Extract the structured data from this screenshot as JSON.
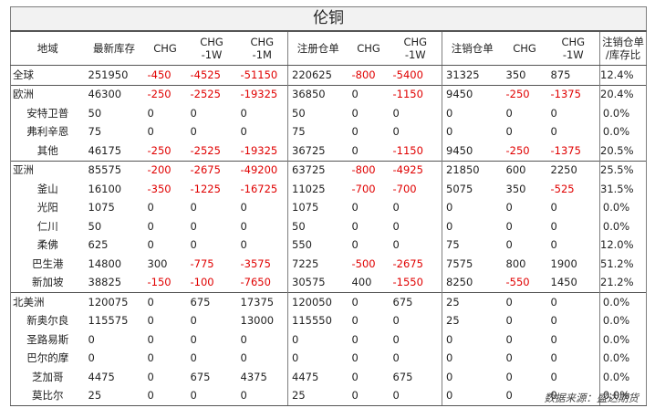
{
  "title": "伦铜",
  "headers": [
    "地域",
    "最新库存",
    "CHG",
    "CHG\n-1W",
    "CHG\n-1M",
    "注册仓单",
    "CHG",
    "CHG\n-1W",
    "注销仓单",
    "CHG",
    "CHG\n-1W",
    "注销仓单\n/库存比"
  ],
  "rows": [
    {
      "region": "全球",
      "sub": false,
      "group_start": true,
      "cells": [
        "251950",
        "-450",
        "-4525",
        "-51150",
        "220625",
        "-800",
        "-5400",
        "31325",
        "350",
        "875",
        "12.4%"
      ]
    },
    {
      "region": "欧洲",
      "sub": false,
      "group_start": true,
      "cells": [
        "46300",
        "-250",
        "-2525",
        "-19325",
        "36850",
        "0",
        "-1150",
        "9450",
        "-250",
        "-1375",
        "20.4%"
      ]
    },
    {
      "region": "安特卫普",
      "sub": true,
      "group_start": false,
      "cells": [
        "50",
        "0",
        "0",
        "0",
        "50",
        "0",
        "0",
        "0",
        "0",
        "0",
        "0.0%"
      ]
    },
    {
      "region": "弗利辛恩",
      "sub": true,
      "group_start": false,
      "cells": [
        "75",
        "0",
        "0",
        "0",
        "75",
        "0",
        "0",
        "0",
        "0",
        "0",
        "0.0%"
      ]
    },
    {
      "region": "其他",
      "sub": true,
      "group_start": false,
      "cells": [
        "46175",
        "-250",
        "-2525",
        "-19325",
        "36725",
        "0",
        "-1150",
        "9450",
        "-250",
        "-1375",
        "20.5%"
      ]
    },
    {
      "region": "亚洲",
      "sub": false,
      "group_start": true,
      "cells": [
        "85575",
        "-200",
        "-2675",
        "-49200",
        "63725",
        "-800",
        "-4925",
        "21850",
        "600",
        "2250",
        "25.5%"
      ]
    },
    {
      "region": "釜山",
      "sub": true,
      "group_start": false,
      "cells": [
        "16100",
        "-350",
        "-1225",
        "-16725",
        "11025",
        "-700",
        "-700",
        "5075",
        "350",
        "-525",
        "31.5%"
      ]
    },
    {
      "region": "光阳",
      "sub": true,
      "group_start": false,
      "cells": [
        "1075",
        "0",
        "0",
        "0",
        "1075",
        "0",
        "0",
        "0",
        "0",
        "0",
        "0.0%"
      ]
    },
    {
      "region": "仁川",
      "sub": true,
      "group_start": false,
      "cells": [
        "50",
        "0",
        "0",
        "0",
        "50",
        "0",
        "0",
        "0",
        "0",
        "0",
        "0.0%"
      ]
    },
    {
      "region": "柔佛",
      "sub": true,
      "group_start": false,
      "cells": [
        "625",
        "0",
        "0",
        "0",
        "550",
        "0",
        "0",
        "75",
        "0",
        "0",
        "12.0%"
      ]
    },
    {
      "region": "巴生港",
      "sub": true,
      "group_start": false,
      "cells": [
        "14800",
        "300",
        "-775",
        "-3575",
        "7225",
        "-500",
        "-2675",
        "7575",
        "800",
        "1900",
        "51.2%"
      ]
    },
    {
      "region": "新加坡",
      "sub": true,
      "group_start": false,
      "cells": [
        "38825",
        "-150",
        "-100",
        "-7650",
        "30575",
        "400",
        "-1550",
        "8250",
        "-550",
        "1450",
        "21.2%"
      ]
    },
    {
      "region": "北美洲",
      "sub": false,
      "group_start": true,
      "cells": [
        "120075",
        "0",
        "675",
        "17375",
        "120050",
        "0",
        "675",
        "25",
        "0",
        "0",
        "0.0%"
      ]
    },
    {
      "region": "新奥尔良",
      "sub": true,
      "group_start": false,
      "cells": [
        "115575",
        "0",
        "0",
        "13000",
        "115550",
        "0",
        "0",
        "25",
        "0",
        "0",
        "0.0%"
      ]
    },
    {
      "region": "圣路易斯",
      "sub": true,
      "group_start": false,
      "cells": [
        "0",
        "0",
        "0",
        "0",
        "0",
        "0",
        "0",
        "0",
        "0",
        "0",
        "0.0%"
      ]
    },
    {
      "region": "巴尔的摩",
      "sub": true,
      "group_start": false,
      "cells": [
        "0",
        "0",
        "0",
        "0",
        "0",
        "0",
        "0",
        "0",
        "0",
        "0",
        "0.0%"
      ]
    },
    {
      "region": "芝加哥",
      "sub": true,
      "group_start": false,
      "cells": [
        "4475",
        "0",
        "675",
        "4375",
        "4475",
        "0",
        "675",
        "0",
        "0",
        "0",
        "0.0%"
      ]
    },
    {
      "region": "莫比尔",
      "sub": true,
      "group_start": false,
      "cells": [
        "25",
        "0",
        "0",
        "0",
        "25",
        "0",
        "0",
        "0",
        "0",
        "0",
        "0.0%"
      ]
    }
  ],
  "source": "数据来源：盛达期货",
  "colors": {
    "negative": "#e00000",
    "text": "#222222",
    "title_bg": "#f2f2f2",
    "rule": "#555555"
  }
}
